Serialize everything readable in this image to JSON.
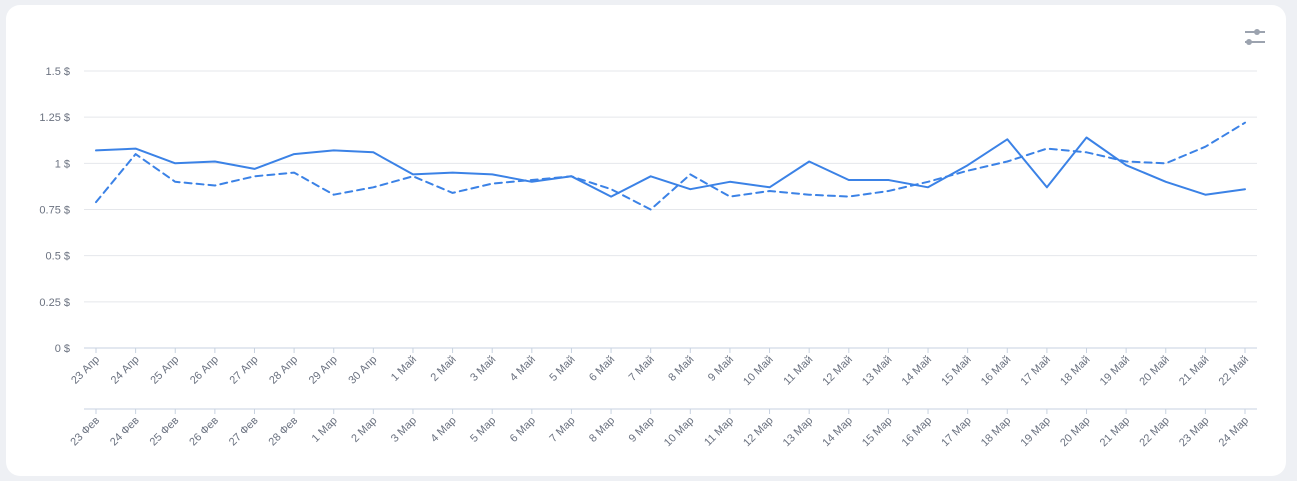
{
  "chart_data": {
    "type": "line",
    "y_ticks": [
      "0 $",
      "0.25 $",
      "0.5 $",
      "0.75 $",
      "1 $",
      "1.25 $",
      "1.5 $"
    ],
    "ylim": [
      0,
      1.5
    ],
    "grid": true,
    "x_primary": [
      "23 Апр",
      "24 Апр",
      "25 Апр",
      "26 Апр",
      "27 Апр",
      "28 Апр",
      "29 Апр",
      "30 Апр",
      "1 Май",
      "2 Май",
      "3 Май",
      "4 Май",
      "5 Май",
      "6 Май",
      "7 Май",
      "8 Май",
      "9 Май",
      "10 Май",
      "11 Май",
      "12 Май",
      "13 Май",
      "14 Май",
      "15 Май",
      "16 Май",
      "17 Май",
      "18 Май",
      "19 Май",
      "20 Май",
      "21 Май",
      "22 Май"
    ],
    "x_secondary": [
      "23 Фев",
      "24 Фев",
      "25 Фев",
      "26 Фев",
      "27 Фев",
      "28 Фев",
      "1 Мар",
      "2 Мар",
      "3 Мар",
      "4 Мар",
      "5 Мар",
      "6 Мар",
      "7 Мар",
      "8 Мар",
      "9 Мар",
      "10 Мар",
      "11 Мар",
      "12 Мар",
      "13 Мар",
      "14 Мар",
      "15 Мар",
      "16 Мар",
      "17 Мар",
      "18 Мар",
      "19 Мар",
      "20 Мар",
      "21 Мар",
      "22 Мар",
      "23 Мар",
      "24 Мар"
    ],
    "series": [
      {
        "style": "solid",
        "color": "#3b82e6",
        "values": [
          1.07,
          1.08,
          1.0,
          1.01,
          0.97,
          1.05,
          1.07,
          1.06,
          0.94,
          0.95,
          0.94,
          0.9,
          0.93,
          0.82,
          0.93,
          0.86,
          0.9,
          0.87,
          1.01,
          0.91,
          0.91,
          0.87,
          0.99,
          1.13,
          0.87,
          1.14,
          0.99,
          0.9,
          0.83,
          0.86
        ]
      },
      {
        "style": "dashed",
        "color": "#3b82e6",
        "values": [
          0.79,
          1.05,
          0.9,
          0.88,
          0.93,
          0.95,
          0.83,
          0.87,
          0.93,
          0.84,
          0.89,
          0.91,
          0.93,
          0.86,
          0.75,
          0.94,
          0.82,
          0.85,
          0.83,
          0.82,
          0.85,
          0.9,
          0.96,
          1.01,
          1.08,
          1.06,
          1.01,
          1.0,
          1.09,
          1.22
        ]
      }
    ]
  },
  "icons": {
    "settings": "sliders-icon"
  }
}
